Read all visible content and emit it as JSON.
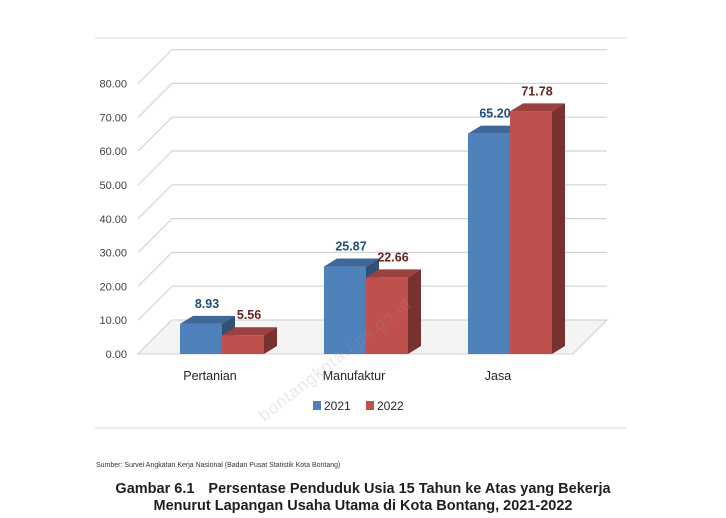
{
  "chart_data": {
    "type": "bar",
    "categories": [
      "Pertanian",
      "Manufaktur",
      "Jasa"
    ],
    "series": [
      {
        "name": "2021",
        "values": [
          8.93,
          25.87,
          65.2
        ],
        "labels": [
          "8.93",
          "25.87",
          "65.20"
        ],
        "color": "#4f81bd",
        "label_color": "#1f4e79"
      },
      {
        "name": "2022",
        "values": [
          5.56,
          22.66,
          71.78
        ],
        "labels": [
          "5.56",
          "22.66",
          "71.78"
        ],
        "color": "#c0504d",
        "label_color": "#632523"
      }
    ],
    "yticks": [
      "0.00",
      "10.00",
      "20.00",
      "30.00",
      "40.00",
      "50.00",
      "60.00",
      "70.00",
      "80.00"
    ],
    "ylim": [
      0,
      80
    ],
    "xlabel": "",
    "ylabel": "",
    "grid": true,
    "legend_position": "bottom"
  },
  "watermark": "bontangkota.bps.go.id",
  "source_note": "Sumber: Survei Angkatan Kerja Nasional (Badan Pusat Statistik Kota Bontang)",
  "caption": {
    "figure_number": "Gambar 6.1",
    "line1": "Persentase Penduduk Usia 15 Tahun ke Atas yang Bekerja",
    "line2": "Menurut Lapangan Usaha Utama di Kota Bontang, 2021-2022"
  }
}
